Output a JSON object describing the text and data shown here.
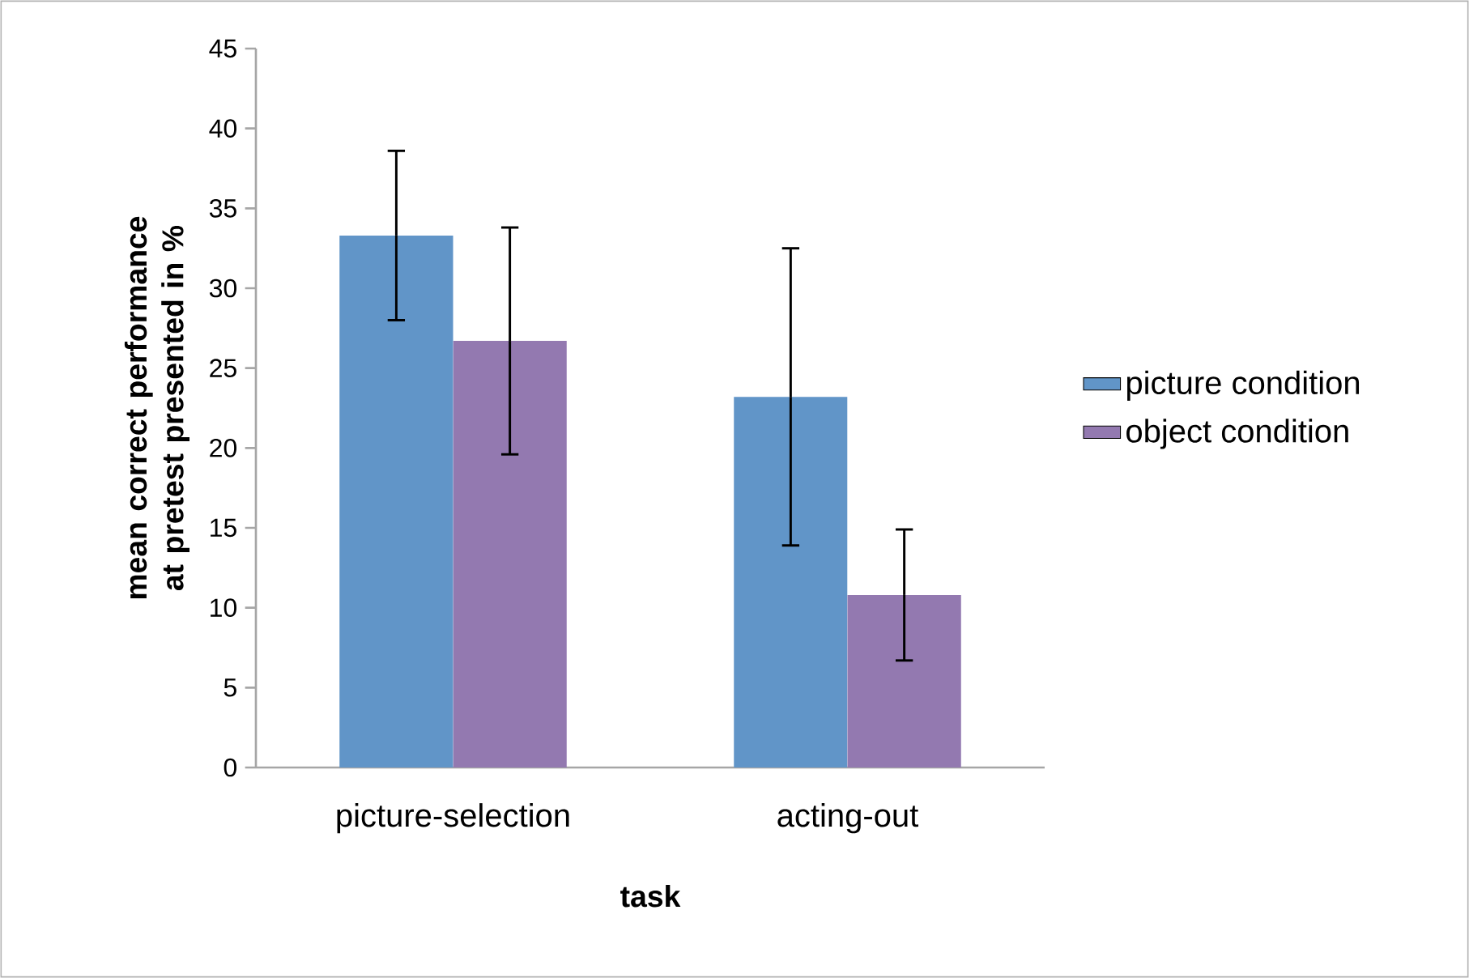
{
  "chart_data": {
    "type": "bar",
    "xlabel": "task",
    "ylabel": "mean correct performance at pretest presented in %",
    "categories": [
      "picture-selection",
      "acting-out"
    ],
    "series": [
      {
        "name": "picture condition",
        "color": "#6195c8",
        "values": [
          33.3,
          23.2
        ],
        "errors": [
          5.3,
          9.3
        ]
      },
      {
        "name": "object condition",
        "color": "#9379b0",
        "values": [
          26.7,
          10.8
        ],
        "errors": [
          7.1,
          4.1
        ]
      }
    ],
    "ylim": [
      0,
      45
    ],
    "yticks": [
      0,
      5,
      10,
      15,
      20,
      25,
      30,
      35,
      40,
      45
    ],
    "legend": "right",
    "grid": false
  }
}
